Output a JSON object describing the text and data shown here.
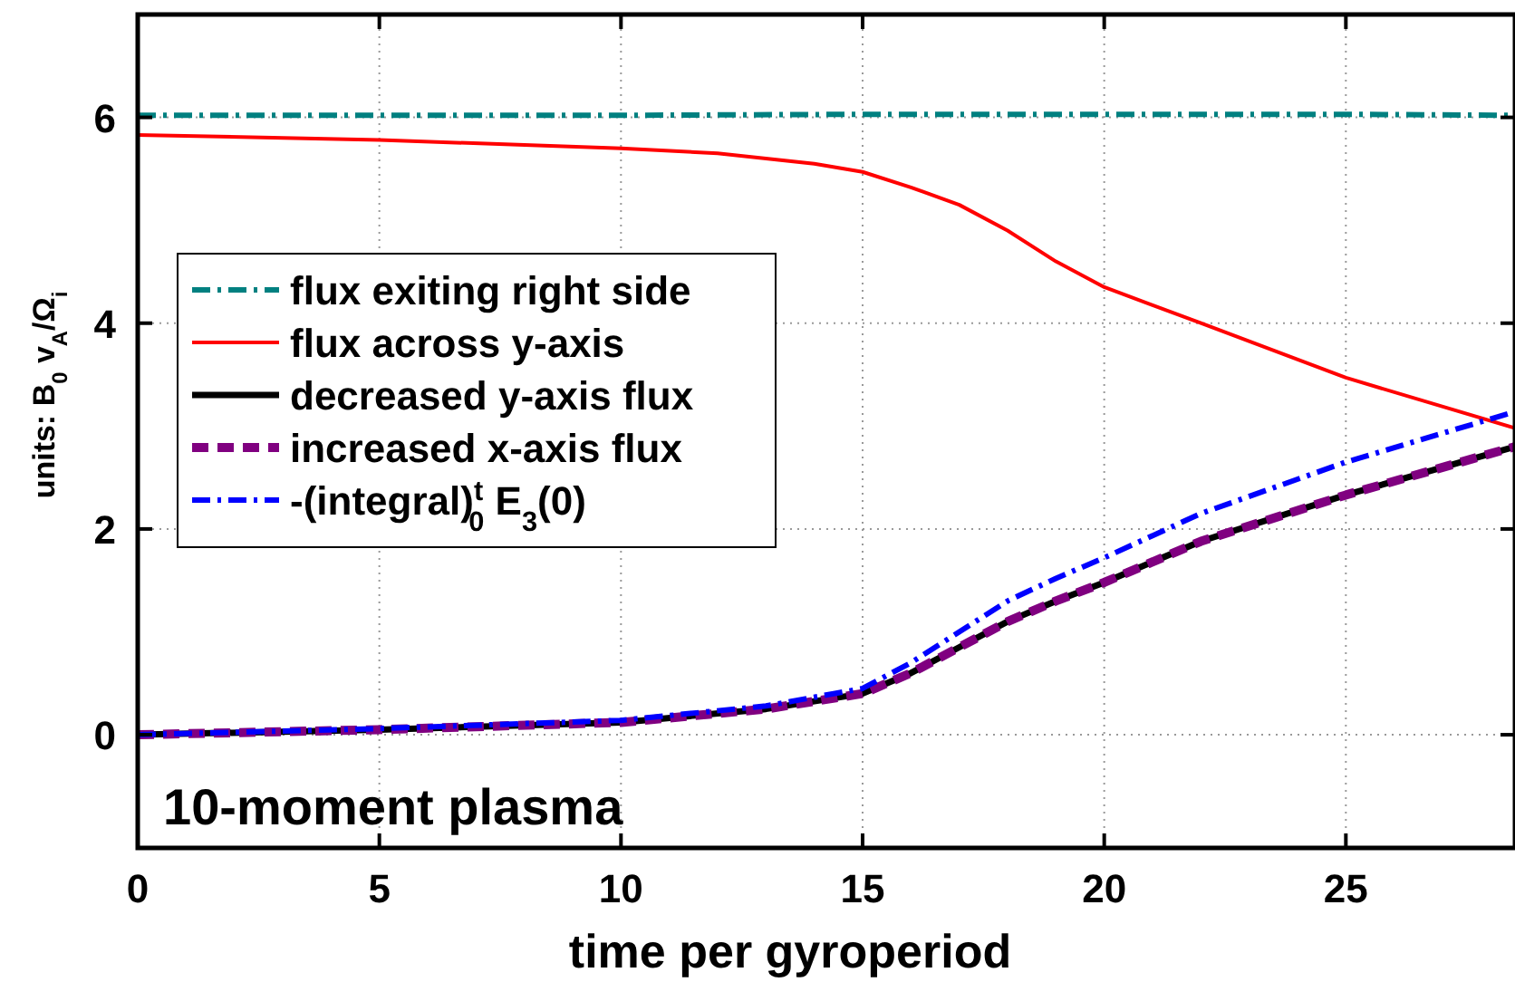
{
  "chart_data": {
    "type": "line",
    "xlabel": "time per gyroperiod",
    "ylabel": "units: B$_{0}$ v$_{A}$/Ω$_{i}$",
    "xlim": [
      0,
      28.5
    ],
    "ylim": [
      -1.1,
      7
    ],
    "xticks": [
      0,
      5,
      10,
      15,
      20,
      25
    ],
    "yticks": [
      0,
      2,
      4,
      6
    ],
    "grid": true,
    "legend": "left",
    "annotations": [
      "10-moment plasma"
    ],
    "series": [
      {
        "name": "flux exiting right side",
        "color": "#008080",
        "line_style": "dashdot",
        "x": [
          0,
          5,
          10,
          15,
          20,
          25,
          28.5
        ],
        "values": [
          6.02,
          6.02,
          6.02,
          6.03,
          6.03,
          6.03,
          6.02
        ]
      },
      {
        "name": "flux across y-axis",
        "color": "#ff0000",
        "line_style": "solid",
        "x": [
          0,
          5,
          10,
          12,
          14,
          15,
          16,
          17,
          18,
          19,
          20,
          22,
          25,
          28.5
        ],
        "values": [
          5.83,
          5.78,
          5.7,
          5.65,
          5.55,
          5.47,
          5.32,
          5.15,
          4.9,
          4.6,
          4.35,
          4.0,
          3.47,
          2.98
        ]
      },
      {
        "name": "decreased y-axis flux",
        "color": "#000000",
        "line_style": "solid",
        "x": [
          0,
          5,
          10,
          13,
          15,
          16,
          17,
          18,
          19,
          20,
          22,
          25,
          28.5
        ],
        "values": [
          0,
          0.05,
          0.12,
          0.25,
          0.4,
          0.6,
          0.85,
          1.1,
          1.3,
          1.48,
          1.88,
          2.33,
          2.8
        ]
      },
      {
        "name": "increased x-axis flux",
        "color": "#800080",
        "line_style": "dashed",
        "x": [
          0,
          5,
          10,
          13,
          15,
          16,
          17,
          18,
          19,
          20,
          22,
          25,
          28.5
        ],
        "values": [
          0,
          0.05,
          0.12,
          0.25,
          0.4,
          0.6,
          0.85,
          1.1,
          1.3,
          1.48,
          1.88,
          2.33,
          2.8
        ]
      },
      {
        "name": "-(integral)$^{t}$$_{0}$ E$_{3}$(0)",
        "color": "#0000ff",
        "line_style": "dashdot",
        "x": [
          0,
          5,
          10,
          13,
          15,
          16,
          17,
          18,
          19,
          20,
          22,
          25,
          28.5
        ],
        "values": [
          0,
          0.06,
          0.14,
          0.28,
          0.45,
          0.7,
          1.0,
          1.3,
          1.52,
          1.72,
          2.15,
          2.65,
          3.14
        ]
      }
    ]
  }
}
